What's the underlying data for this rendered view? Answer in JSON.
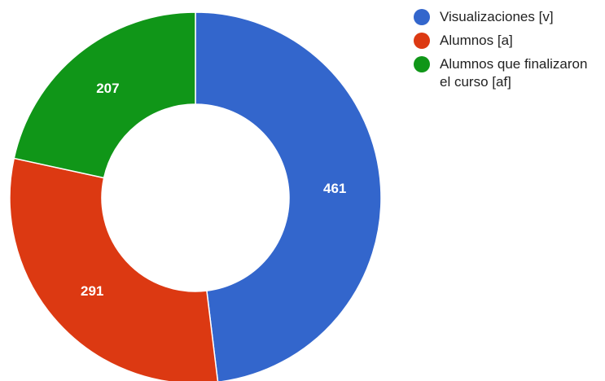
{
  "chart_data": {
    "type": "donut",
    "categories": [
      "Visualizaciones [v]",
      "Alumnos [a]",
      "Alumnos que finalizaron el curso [af]"
    ],
    "values": [
      461,
      291,
      207
    ],
    "colors": [
      "#3366cc",
      "#dc3912",
      "#109618"
    ]
  }
}
